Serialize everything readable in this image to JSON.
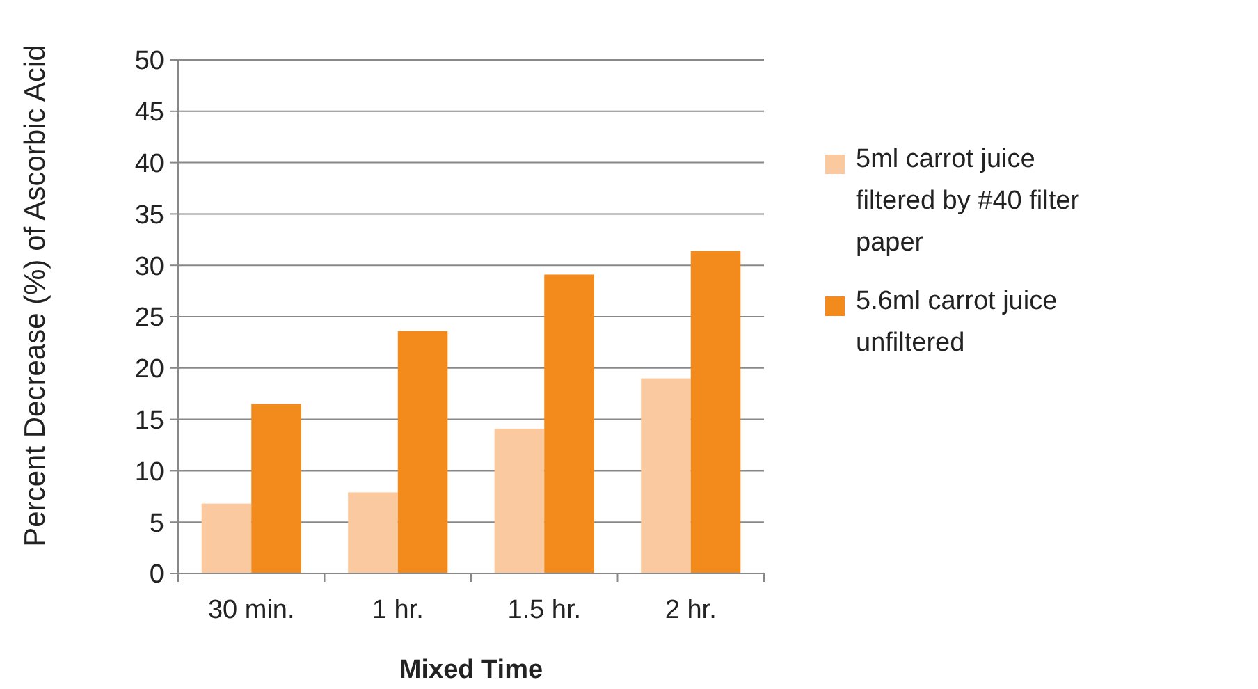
{
  "chart_data": {
    "type": "bar",
    "xlabel": "Mixed Time",
    "ylabel": "Percent Decrease (%) of Ascorbic Acid",
    "categories": [
      "30 min.",
      "1 hr.",
      "1.5 hr.",
      "2 hr."
    ],
    "series": [
      {
        "name": "5ml carrot juice filtered by #40 filter paper",
        "color": "#fbc9a0",
        "values": [
          6.8,
          7.9,
          14.1,
          19.0
        ]
      },
      {
        "name": "5.6ml carrot juice unfiltered",
        "color": "#f28a1c",
        "values": [
          16.5,
          23.6,
          29.1,
          31.4
        ]
      }
    ],
    "ylim": [
      0,
      50
    ],
    "yticks": [
      0,
      5,
      10,
      15,
      20,
      25,
      30,
      35,
      40,
      45,
      50
    ],
    "grid": "y",
    "legend": "right"
  }
}
